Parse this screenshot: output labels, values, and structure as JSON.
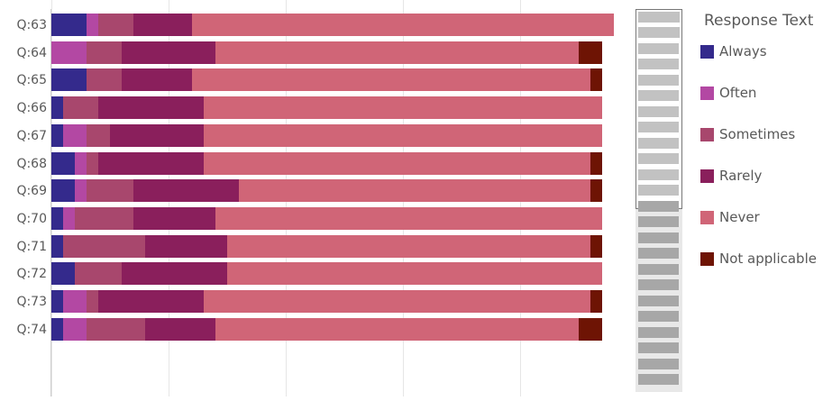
{
  "legend": {
    "title": "Response Text"
  },
  "chart_data": {
    "type": "bar",
    "orientation": "horizontal",
    "stacked": true,
    "categories": [
      "Q:63",
      "Q:64",
      "Q:65",
      "Q:66",
      "Q:67",
      "Q:68",
      "Q:69",
      "Q:70",
      "Q:71",
      "Q:72",
      "Q:73",
      "Q:74"
    ],
    "series": [
      {
        "name": "Always",
        "color": "#342a8c",
        "values": [
          3,
          0,
          3,
          1,
          1,
          2,
          2,
          1,
          1,
          2,
          1,
          1
        ]
      },
      {
        "name": "Often",
        "color": "#b348a3",
        "values": [
          1,
          3,
          0,
          0,
          2,
          1,
          1,
          1,
          0,
          0,
          2,
          2
        ]
      },
      {
        "name": "Sometimes",
        "color": "#a8476d",
        "values": [
          3,
          3,
          3,
          3,
          2,
          1,
          4,
          5,
          7,
          4,
          1,
          5
        ]
      },
      {
        "name": "Rarely",
        "color": "#8a1f5c",
        "values": [
          5,
          8,
          6,
          9,
          8,
          9,
          9,
          7,
          7,
          9,
          9,
          6
        ]
      },
      {
        "name": "Never",
        "color": "#d06577",
        "values": [
          36,
          31,
          34,
          34,
          34,
          33,
          30,
          33,
          31,
          32,
          33,
          31
        ]
      },
      {
        "name": "Not applicable",
        "color": "#6e1404",
        "values": [
          0,
          2,
          1,
          0,
          0,
          1,
          1,
          0,
          1,
          0,
          1,
          2
        ]
      }
    ],
    "xlim": [
      0,
      50
    ],
    "legend_position": "right",
    "grid": true
  }
}
